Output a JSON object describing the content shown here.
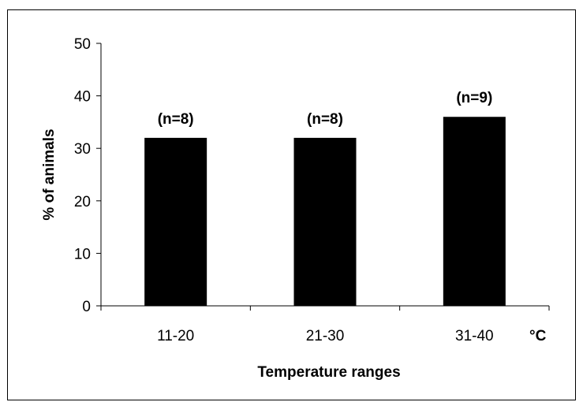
{
  "chart_data": {
    "type": "bar",
    "categories": [
      "11-20",
      "21-30",
      "31-40"
    ],
    "values": [
      32,
      32,
      36
    ],
    "data_labels": [
      "(n=8)",
      "(n=8)",
      "(n=9)"
    ],
    "xlabel": "Temperature ranges",
    "ylabel": "% of animals",
    "x_unit": "°C",
    "ylim": [
      0,
      50
    ],
    "yticks": [
      0,
      10,
      20,
      30,
      40,
      50
    ],
    "grid": false,
    "legend": "none",
    "bar_color": "#000000"
  }
}
